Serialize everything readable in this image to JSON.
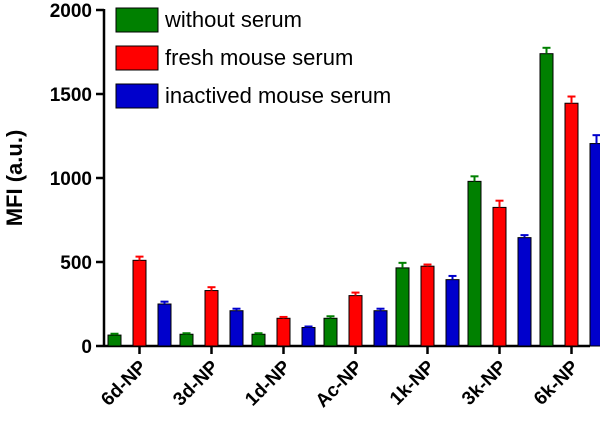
{
  "chart_data": {
    "type": "bar",
    "title": "",
    "xlabel": "",
    "ylabel": "MFI (a.u.)",
    "ylim": [
      0,
      2000
    ],
    "yticks": [
      0,
      500,
      1000,
      1500,
      2000
    ],
    "categories": [
      "6d-NP",
      "3d-NP",
      "1d-NP",
      "Ac-NP",
      "1k-NP",
      "3k-NP",
      "6k-NP"
    ],
    "legend_position": "top-left",
    "grid": false,
    "series": [
      {
        "name": "without serum",
        "color": "#008000",
        "values": [
          65,
          70,
          70,
          165,
          465,
          980,
          1740
        ],
        "errors": [
          8,
          6,
          6,
          12,
          30,
          30,
          35
        ]
      },
      {
        "name": "fresh mouse serum",
        "color": "#ff0000",
        "values": [
          510,
          330,
          165,
          300,
          475,
          825,
          1445
        ],
        "errors": [
          22,
          20,
          8,
          18,
          10,
          40,
          40
        ]
      },
      {
        "name": "inactived mouse serum",
        "color": "#0000cc",
        "values": [
          250,
          210,
          110,
          210,
          395,
          645,
          1205
        ],
        "errors": [
          14,
          12,
          6,
          12,
          22,
          15,
          50
        ]
      }
    ]
  }
}
